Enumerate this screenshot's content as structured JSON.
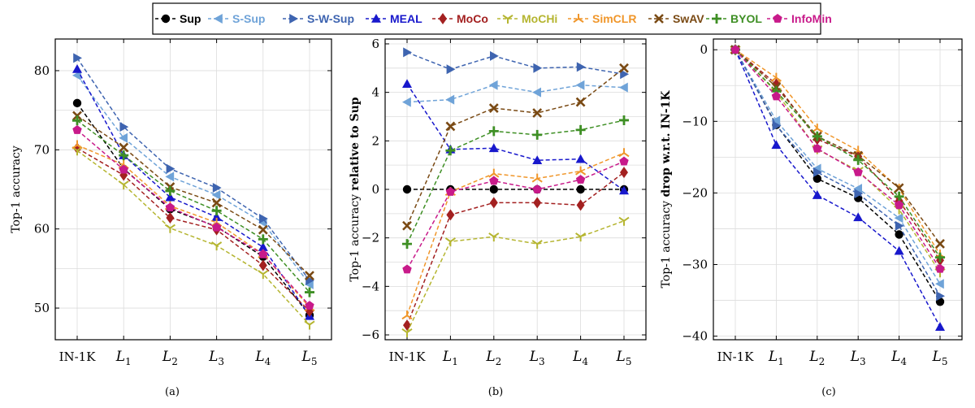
{
  "legend": [
    {
      "name": "Sup",
      "color": "#000000",
      "marker": "circle"
    },
    {
      "name": "S-Sup",
      "color": "#6fa3d8",
      "marker": "tri-left"
    },
    {
      "name": "S-W-Sup",
      "color": "#3e64b0",
      "marker": "tri-right"
    },
    {
      "name": "MEAL",
      "color": "#1818cc",
      "marker": "tri-up"
    },
    {
      "name": "MoCo",
      "color": "#a32020",
      "marker": "diamond"
    },
    {
      "name": "MoCHi",
      "color": "#b5b530",
      "marker": "y-down"
    },
    {
      "name": "SimCLR",
      "color": "#f0962a",
      "marker": "y-up"
    },
    {
      "name": "SwAV",
      "color": "#7a4a14",
      "marker": "x"
    },
    {
      "name": "BYOL",
      "color": "#3e8f24",
      "marker": "plus"
    },
    {
      "name": "InfoMin",
      "color": "#c81a8a",
      "marker": "pentagon"
    }
  ],
  "x_tick_labels": [
    {
      "main": "IN-1K",
      "sub": ""
    },
    {
      "main": "L",
      "sub": "1"
    },
    {
      "main": "L",
      "sub": "2"
    },
    {
      "main": "L",
      "sub": "3"
    },
    {
      "main": "L",
      "sub": "4"
    },
    {
      "main": "L",
      "sub": "5"
    }
  ],
  "chart_data": [
    {
      "type": "line",
      "caption": "(a)",
      "ylabel": "Top-1 accuracy",
      "ylabel_bold": "",
      "ylim": [
        46,
        84
      ],
      "yticks": [
        50,
        60,
        70,
        80
      ],
      "grid": true,
      "series": [
        {
          "name": "Sup",
          "values": [
            75.9,
            67.6,
            62.5,
            60.3,
            56.5,
            49.1
          ]
        },
        {
          "name": "S-Sup",
          "values": [
            79.4,
            71.5,
            66.6,
            64.3,
            60.8,
            53.0
          ]
        },
        {
          "name": "S-W-Sup",
          "values": [
            81.6,
            72.9,
            67.6,
            65.2,
            61.3,
            53.5
          ]
        },
        {
          "name": "MEAL",
          "values": [
            80.2,
            69.3,
            64.0,
            61.5,
            57.7,
            49.0
          ]
        },
        {
          "name": "MoCo",
          "values": [
            70.2,
            66.8,
            61.4,
            59.9,
            55.4,
            49.6
          ]
        },
        {
          "name": "MoCHi",
          "values": [
            69.9,
            65.6,
            60.1,
            57.9,
            54.3,
            47.9
          ]
        },
        {
          "name": "SimCLR",
          "values": [
            70.6,
            68.1,
            62.9,
            60.8,
            56.8,
            50.1
          ]
        },
        {
          "name": "SwAV",
          "values": [
            74.3,
            70.3,
            65.3,
            63.3,
            59.9,
            54.1
          ]
        },
        {
          "name": "BYOL",
          "values": [
            73.7,
            69.3,
            64.8,
            62.3,
            58.7,
            52.0
          ]
        },
        {
          "name": "InfoMin",
          "values": [
            72.5,
            67.5,
            62.7,
            60.2,
            56.8,
            50.3
          ]
        }
      ]
    },
    {
      "type": "line",
      "caption": "(b)",
      "ylabel": "Top-1 accuracy ",
      "ylabel_bold": "relative to Sup",
      "ylim": [
        -6.2,
        6.2
      ],
      "yticks": [
        -6,
        -4,
        -2,
        0,
        2,
        4,
        6
      ],
      "grid": true,
      "series": [
        {
          "name": "Sup",
          "values": [
            0,
            0,
            0,
            0,
            0,
            0
          ]
        },
        {
          "name": "S-Sup",
          "values": [
            3.6,
            3.7,
            4.3,
            4.0,
            4.3,
            4.2
          ]
        },
        {
          "name": "S-W-Sup",
          "values": [
            5.65,
            4.95,
            5.5,
            5.0,
            5.05,
            4.75
          ]
        },
        {
          "name": "MEAL",
          "values": [
            4.35,
            1.65,
            1.7,
            1.2,
            1.25,
            -0.05
          ]
        },
        {
          "name": "MoCo",
          "values": [
            -5.6,
            -1.05,
            -0.55,
            -0.55,
            -0.65,
            0.7
          ]
        },
        {
          "name": "MoCHi",
          "values": [
            -5.9,
            -2.15,
            -1.95,
            -2.25,
            -1.95,
            -1.3
          ]
        },
        {
          "name": "SimCLR",
          "values": [
            -5.2,
            -0.1,
            0.65,
            0.45,
            0.75,
            1.5
          ]
        },
        {
          "name": "SwAV",
          "values": [
            -1.5,
            2.6,
            3.35,
            3.15,
            3.6,
            5.0
          ]
        },
        {
          "name": "BYOL",
          "values": [
            -2.25,
            1.6,
            2.4,
            2.25,
            2.45,
            2.85
          ]
        },
        {
          "name": "InfoMin",
          "values": [
            -3.3,
            -0.1,
            0.35,
            0.0,
            0.4,
            1.15
          ]
        }
      ]
    },
    {
      "type": "line",
      "caption": "(c)",
      "ylabel": "Top-1 accuracy ",
      "ylabel_bold": "drop w.r.t. IN-1K",
      "ylim": [
        -40.5,
        1.5
      ],
      "yticks": [
        -40,
        -30,
        -20,
        -10,
        0
      ],
      "grid": true,
      "series": [
        {
          "name": "Sup",
          "values": [
            0,
            -10.5,
            -18.0,
            -20.7,
            -25.8,
            -35.2
          ]
        },
        {
          "name": "S-Sup",
          "values": [
            0,
            -9.9,
            -16.6,
            -19.4,
            -23.5,
            -32.7
          ]
        },
        {
          "name": "S-W-Sup",
          "values": [
            0,
            -10.6,
            -17.1,
            -20.1,
            -24.6,
            -34.4
          ]
        },
        {
          "name": "MEAL",
          "values": [
            0,
            -13.3,
            -20.3,
            -23.4,
            -28.1,
            -38.7
          ]
        },
        {
          "name": "MoCo",
          "values": [
            0,
            -4.8,
            -12.5,
            -14.9,
            -21.1,
            -29.4
          ]
        },
        {
          "name": "MoCHi",
          "values": [
            0,
            -5.9,
            -13.9,
            -16.9,
            -22.3,
            -31.1
          ]
        },
        {
          "name": "SimCLR",
          "values": [
            0,
            -3.9,
            -11.0,
            -14.1,
            -19.4,
            -28.6
          ]
        },
        {
          "name": "SwAV",
          "values": [
            0,
            -5.2,
            -12.1,
            -14.8,
            -19.3,
            -27.1
          ]
        },
        {
          "name": "BYOL",
          "values": [
            0,
            -5.8,
            -12.1,
            -15.4,
            -20.5,
            -29.0
          ]
        },
        {
          "name": "InfoMin",
          "values": [
            0,
            -6.5,
            -13.8,
            -17.1,
            -21.7,
            -30.6
          ]
        }
      ]
    }
  ]
}
